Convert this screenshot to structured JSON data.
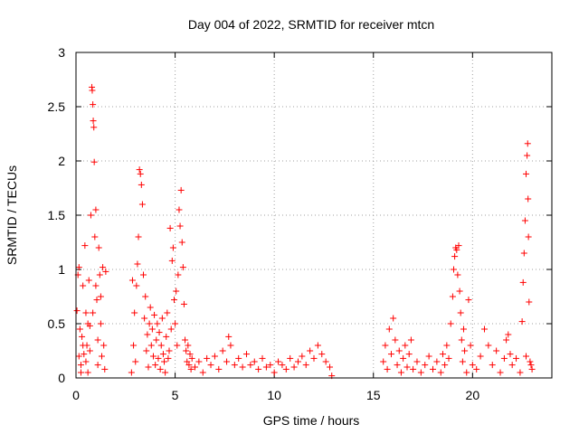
{
  "chart_data": {
    "type": "scatter",
    "title": "Day 004 of 2022, SRMTID for receiver mtcn",
    "xlabel": "GPS time / hours",
    "ylabel": "SRMTID / TECUs",
    "xlim": [
      0,
      24
    ],
    "ylim": [
      0,
      3
    ],
    "grid": true,
    "legend": "none",
    "x_ticks": [
      0,
      5,
      10,
      15,
      20
    ],
    "x_tick_labels": [
      "0",
      "5",
      "10",
      "15",
      "20"
    ],
    "y_ticks": [
      0,
      0.5,
      1,
      1.5,
      2,
      2.5,
      3
    ],
    "y_tick_labels": [
      "0",
      "0.5",
      "1",
      "1.5",
      "2",
      "2.5",
      "3"
    ],
    "marker": "+",
    "series": [
      {
        "name": "SRMTID",
        "color": "#ff0000",
        "points": [
          [
            0.05,
            0.62
          ],
          [
            0.1,
            0.95
          ],
          [
            0.15,
            1.02
          ],
          [
            0.2,
            0.45
          ],
          [
            0.25,
            0.12
          ],
          [
            0.3,
            0.38
          ],
          [
            0.35,
            0.85
          ],
          [
            0.4,
            0.22
          ],
          [
            0.45,
            1.22
          ],
          [
            0.5,
            0.6
          ],
          [
            0.55,
            0.3
          ],
          [
            0.6,
            0.05
          ],
          [
            0.65,
            0.9
          ],
          [
            0.7,
            0.48
          ],
          [
            0.75,
            1.5
          ],
          [
            0.8,
            2.68
          ],
          [
            0.82,
            2.65
          ],
          [
            0.85,
            2.52
          ],
          [
            0.87,
            2.37
          ],
          [
            0.9,
            2.31
          ],
          [
            0.92,
            1.99
          ],
          [
            0.95,
            1.3
          ],
          [
            1.0,
            1.55
          ],
          [
            1.05,
            0.72
          ],
          [
            1.1,
            0.35
          ],
          [
            1.15,
            1.2
          ],
          [
            1.2,
            0.95
          ],
          [
            1.25,
            0.5
          ],
          [
            1.3,
            0.2
          ],
          [
            1.35,
            1.02
          ],
          [
            1.4,
            0.3
          ],
          [
            1.45,
            0.08
          ],
          [
            1.5,
            0.98
          ],
          [
            0.15,
            0.2
          ],
          [
            0.25,
            0.05
          ],
          [
            0.35,
            0.3
          ],
          [
            0.5,
            0.15
          ],
          [
            0.6,
            0.5
          ],
          [
            0.7,
            0.25
          ],
          [
            0.85,
            0.6
          ],
          [
            1.0,
            0.85
          ],
          [
            1.1,
            0.12
          ],
          [
            1.25,
            0.75
          ],
          [
            2.8,
            0.05
          ],
          [
            2.85,
            0.9
          ],
          [
            2.9,
            0.3
          ],
          [
            2.95,
            0.6
          ],
          [
            3.0,
            0.15
          ],
          [
            3.05,
            0.85
          ],
          [
            3.1,
            1.05
          ],
          [
            3.15,
            1.3
          ],
          [
            3.2,
            1.92
          ],
          [
            3.25,
            1.88
          ],
          [
            3.3,
            1.78
          ],
          [
            3.35,
            1.6
          ],
          [
            3.4,
            0.95
          ],
          [
            3.45,
            0.55
          ],
          [
            3.5,
            0.75
          ],
          [
            3.55,
            0.25
          ],
          [
            3.6,
            0.4
          ],
          [
            3.65,
            0.1
          ],
          [
            3.7,
            0.5
          ],
          [
            3.75,
            0.65
          ],
          [
            3.8,
            0.3
          ],
          [
            3.85,
            0.45
          ],
          [
            3.9,
            0.2
          ],
          [
            3.95,
            0.58
          ],
          [
            4.0,
            0.12
          ],
          [
            4.05,
            0.35
          ],
          [
            4.1,
            0.5
          ],
          [
            4.15,
            0.18
          ],
          [
            4.2,
            0.42
          ],
          [
            4.25,
            0.08
          ],
          [
            4.3,
            0.3
          ],
          [
            4.35,
            0.55
          ],
          [
            4.4,
            0.22
          ],
          [
            4.45,
            0.15
          ],
          [
            4.5,
            0.05
          ],
          [
            4.55,
            0.38
          ],
          [
            4.6,
            0.6
          ],
          [
            4.65,
            0.18
          ],
          [
            4.7,
            0.25
          ],
          [
            4.75,
            1.38
          ],
          [
            4.8,
            0.45
          ],
          [
            4.85,
            1.08
          ],
          [
            4.9,
            1.2
          ],
          [
            4.95,
            0.72
          ],
          [
            5.0,
            0.5
          ],
          [
            5.05,
            0.8
          ],
          [
            5.1,
            0.3
          ],
          [
            5.15,
            0.95
          ],
          [
            5.2,
            1.55
          ],
          [
            5.25,
            1.4
          ],
          [
            5.3,
            1.73
          ],
          [
            5.35,
            1.25
          ],
          [
            5.4,
            1.02
          ],
          [
            5.45,
            0.68
          ],
          [
            5.5,
            0.35
          ],
          [
            5.55,
            0.25
          ],
          [
            5.6,
            0.15
          ],
          [
            5.65,
            0.3
          ],
          [
            5.7,
            0.12
          ],
          [
            5.75,
            0.22
          ],
          [
            5.8,
            0.08
          ],
          [
            5.85,
            0.18
          ],
          [
            6.0,
            0.1
          ],
          [
            6.2,
            0.15
          ],
          [
            6.4,
            0.05
          ],
          [
            6.6,
            0.18
          ],
          [
            6.8,
            0.12
          ],
          [
            7.0,
            0.2
          ],
          [
            7.2,
            0.08
          ],
          [
            7.4,
            0.25
          ],
          [
            7.6,
            0.15
          ],
          [
            7.7,
            0.38
          ],
          [
            7.8,
            0.3
          ],
          [
            8.0,
            0.12
          ],
          [
            8.2,
            0.18
          ],
          [
            8.4,
            0.1
          ],
          [
            8.6,
            0.22
          ],
          [
            8.8,
            0.12
          ],
          [
            9.0,
            0.15
          ],
          [
            9.2,
            0.08
          ],
          [
            9.4,
            0.18
          ],
          [
            9.6,
            0.1
          ],
          [
            9.8,
            0.12
          ],
          [
            10.0,
            0.05
          ],
          [
            10.2,
            0.15
          ],
          [
            10.4,
            0.12
          ],
          [
            10.6,
            0.08
          ],
          [
            10.8,
            0.18
          ],
          [
            11.0,
            0.1
          ],
          [
            11.2,
            0.15
          ],
          [
            11.4,
            0.2
          ],
          [
            11.6,
            0.12
          ],
          [
            11.8,
            0.25
          ],
          [
            12.0,
            0.18
          ],
          [
            12.2,
            0.3
          ],
          [
            12.4,
            0.22
          ],
          [
            12.6,
            0.15
          ],
          [
            12.8,
            0.1
          ],
          [
            12.9,
            0.02
          ],
          [
            15.5,
            0.15
          ],
          [
            15.6,
            0.3
          ],
          [
            15.7,
            0.08
          ],
          [
            15.8,
            0.45
          ],
          [
            15.9,
            0.22
          ],
          [
            16.0,
            0.55
          ],
          [
            16.1,
            0.35
          ],
          [
            16.2,
            0.12
          ],
          [
            16.3,
            0.25
          ],
          [
            16.4,
            0.05
          ],
          [
            16.5,
            0.18
          ],
          [
            16.6,
            0.3
          ],
          [
            16.7,
            0.1
          ],
          [
            16.8,
            0.22
          ],
          [
            16.9,
            0.35
          ],
          [
            17.0,
            0.08
          ],
          [
            17.2,
            0.15
          ],
          [
            17.4,
            0.05
          ],
          [
            17.6,
            0.12
          ],
          [
            17.8,
            0.2
          ],
          [
            18.0,
            0.08
          ],
          [
            18.2,
            0.15
          ],
          [
            18.4,
            0.05
          ],
          [
            18.5,
            0.22
          ],
          [
            18.6,
            0.12
          ],
          [
            18.7,
            0.3
          ],
          [
            18.8,
            0.18
          ],
          [
            18.9,
            0.5
          ],
          [
            19.0,
            0.75
          ],
          [
            19.05,
            1.0
          ],
          [
            19.1,
            1.12
          ],
          [
            19.15,
            1.2
          ],
          [
            19.2,
            1.18
          ],
          [
            19.25,
            0.95
          ],
          [
            19.3,
            1.22
          ],
          [
            19.35,
            0.8
          ],
          [
            19.4,
            0.6
          ],
          [
            19.45,
            0.35
          ],
          [
            19.5,
            0.15
          ],
          [
            19.55,
            0.45
          ],
          [
            19.6,
            0.25
          ],
          [
            19.7,
            0.05
          ],
          [
            19.8,
            0.72
          ],
          [
            19.9,
            0.3
          ],
          [
            20.0,
            0.12
          ],
          [
            20.2,
            0.08
          ],
          [
            20.4,
            0.2
          ],
          [
            20.6,
            0.45
          ],
          [
            20.8,
            0.3
          ],
          [
            21.0,
            0.12
          ],
          [
            21.2,
            0.25
          ],
          [
            21.4,
            0.05
          ],
          [
            21.6,
            0.18
          ],
          [
            21.7,
            0.35
          ],
          [
            21.8,
            0.4
          ],
          [
            21.9,
            0.22
          ],
          [
            22.0,
            0.12
          ],
          [
            22.2,
            0.18
          ],
          [
            22.4,
            0.05
          ],
          [
            22.5,
            0.52
          ],
          [
            22.55,
            0.88
          ],
          [
            22.6,
            1.15
          ],
          [
            22.65,
            1.45
          ],
          [
            22.7,
            1.88
          ],
          [
            22.75,
            2.05
          ],
          [
            22.78,
            2.16
          ],
          [
            22.8,
            1.65
          ],
          [
            22.82,
            1.3
          ],
          [
            22.85,
            0.7
          ],
          [
            22.9,
            0.15
          ],
          [
            23.0,
            0.08
          ],
          [
            22.95,
            0.12
          ],
          [
            22.7,
            0.2
          ]
        ]
      }
    ]
  }
}
